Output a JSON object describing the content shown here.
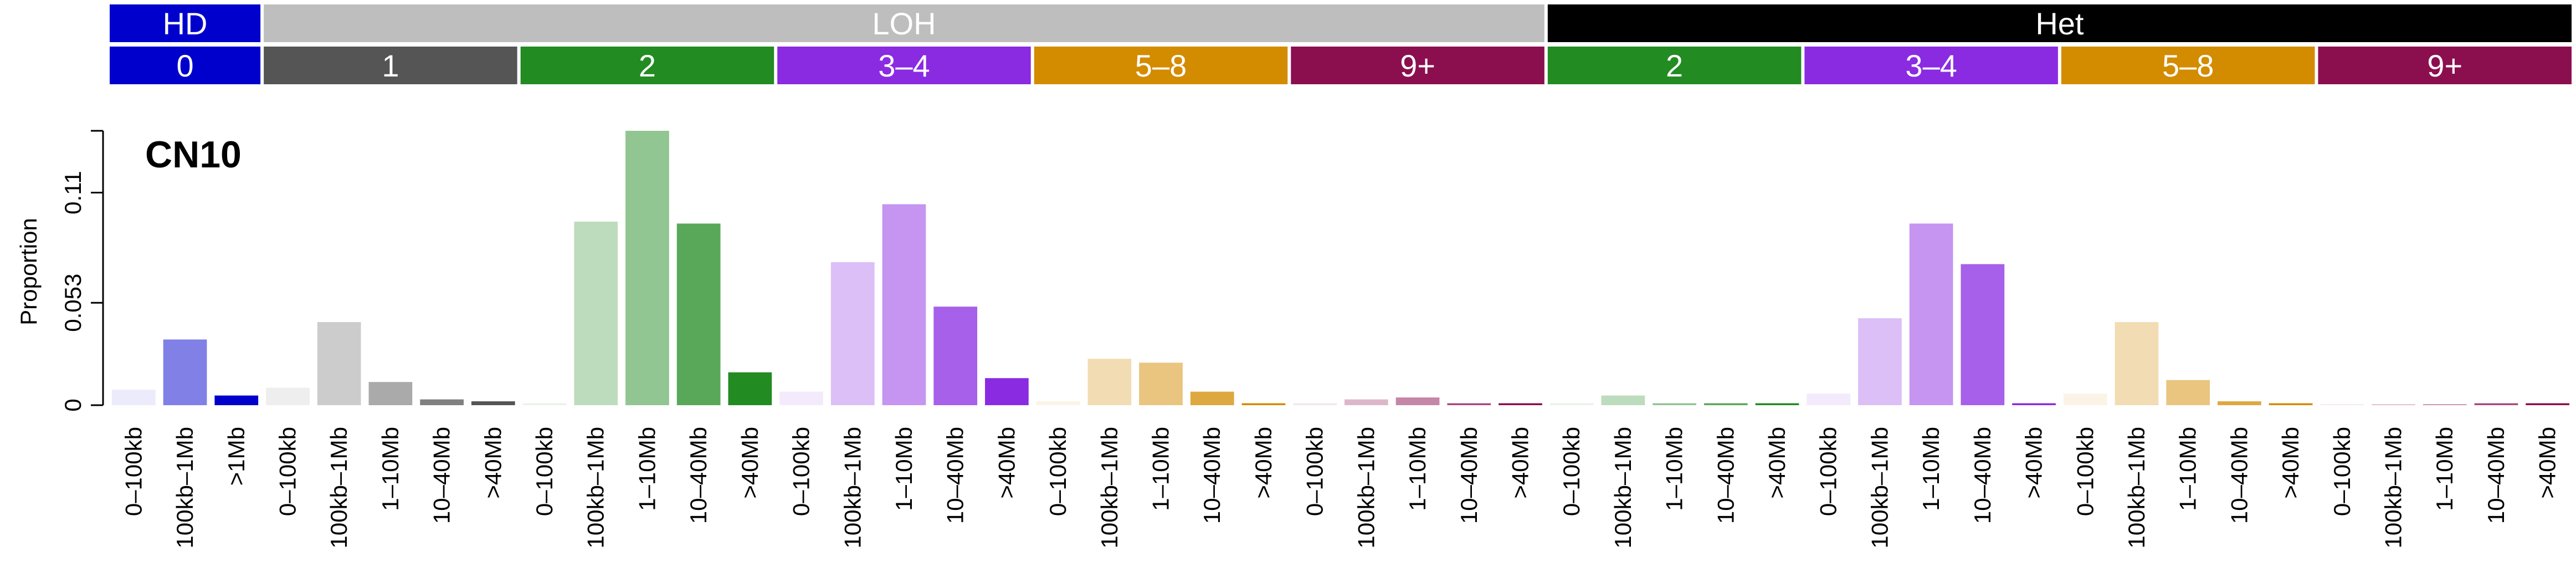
{
  "chart_data": {
    "type": "bar",
    "title": "CN10",
    "ylabel": "Proportion",
    "ylim": [
      0,
      0.142
    ],
    "yticks": [
      "0",
      "0.053",
      "0.11"
    ],
    "ytick_values": [
      0,
      0.053,
      0.11
    ],
    "grid": false,
    "zygosity_bands": [
      {
        "label": "HD",
        "color": "#0000CD",
        "span": 3
      },
      {
        "label": "LOH",
        "color": "#BEBEBE",
        "span": 25
      },
      {
        "label": "Het",
        "color": "#000000",
        "span": 20
      }
    ],
    "copy_number_bands": [
      {
        "label": "0",
        "color": "#0000CD",
        "span": 3
      },
      {
        "label": "1",
        "color": "#555555",
        "span": 5
      },
      {
        "label": "2",
        "color": "#228B22",
        "span": 5
      },
      {
        "label": "3–4",
        "color": "#8A2BE2",
        "span": 5
      },
      {
        "label": "5–8",
        "color": "#D38B00",
        "span": 5
      },
      {
        "label": "9+",
        "color": "#8B0F4F",
        "span": 5
      },
      {
        "label": "2",
        "color": "#228B22",
        "span": 5
      },
      {
        "label": "3–4",
        "color": "#8A2BE2",
        "span": 5
      },
      {
        "label": "5–8",
        "color": "#D38B00",
        "span": 5
      },
      {
        "label": "9+",
        "color": "#8B0F4F",
        "span": 5
      }
    ],
    "size_opacities": {
      "3": [
        0.08,
        0.5,
        1.0
      ],
      "5": [
        0.1,
        0.3,
        0.5,
        0.75,
        1.0
      ]
    },
    "categories": [
      "0–100kb",
      "100kb–1Mb",
      ">1Mb",
      "0–100kb",
      "100kb–1Mb",
      "1–10Mb",
      "10–40Mb",
      ">40Mb",
      "0–100kb",
      "100kb–1Mb",
      "1–10Mb",
      "10–40Mb",
      ">40Mb",
      "0–100kb",
      "100kb–1Mb",
      "1–10Mb",
      "10–40Mb",
      ">40Mb",
      "0–100kb",
      "100kb–1Mb",
      "1–10Mb",
      "10–40Mb",
      ">40Mb",
      "0–100kb",
      "100kb–1Mb",
      "1–10Mb",
      "10–40Mb",
      ">40Mb",
      "0–100kb",
      "100kb–1Mb",
      "1–10Mb",
      "10–40Mb",
      ">40Mb",
      "0–100kb",
      "100kb–1Mb",
      "1–10Mb",
      "10–40Mb",
      ">40Mb",
      "0–100kb",
      "100kb–1Mb",
      "1–10Mb",
      "10–40Mb",
      ">40Mb",
      "0–100kb",
      "100kb–1Mb",
      "1–10Mb",
      "10–40Mb",
      ">40Mb"
    ],
    "values": [
      0.008,
      0.034,
      0.005,
      0.009,
      0.043,
      0.012,
      0.003,
      0.002,
      0.001,
      0.095,
      0.142,
      0.094,
      0.017,
      0.007,
      0.074,
      0.104,
      0.051,
      0.014,
      0.002,
      0.024,
      0.022,
      0.007,
      0.001,
      0.001,
      0.003,
      0.004,
      0.001,
      0.001,
      0.001,
      0.005,
      0.001,
      0.001,
      0.001,
      0.006,
      0.045,
      0.094,
      0.073,
      0.001,
      0.006,
      0.043,
      0.013,
      0.002,
      0.001,
      0.0005,
      0.0005,
      0.0005,
      0.001,
      0.001
    ]
  }
}
